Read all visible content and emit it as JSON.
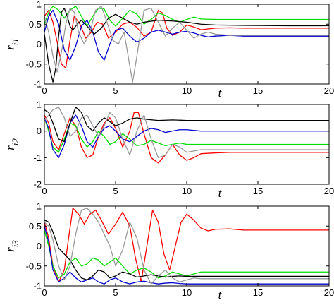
{
  "chart_data": [
    {
      "type": "line",
      "ylabel": "r",
      "ylabel_sub": "i1",
      "xlabel": "t",
      "xlim": [
        0,
        20
      ],
      "ylim": [
        -1,
        1
      ],
      "xticks": [
        "0",
        "5",
        "10",
        "15",
        "20"
      ],
      "yticks": [
        "1",
        "0.5",
        "0",
        "-0.5",
        "-1"
      ],
      "series": [
        {
          "color": "#ff0000",
          "x": [
            0,
            0.3,
            0.6,
            0.9,
            1.2,
            1.5,
            1.8,
            2.1,
            2.5,
            2.9,
            3.3,
            3.7,
            4.1,
            4.5,
            5.0,
            5.5,
            6.0,
            6.5,
            7.0,
            7.5,
            8.0,
            8.3,
            8.6,
            9.0,
            9.5,
            10.0,
            10.5,
            11.0,
            12.0,
            13.0,
            14.0,
            15.0,
            17.0,
            20.0
          ],
          "y": [
            0.7,
            0.85,
            0.55,
            0.05,
            -0.5,
            -0.6,
            0.1,
            0.7,
            0.5,
            0.15,
            0.3,
            0.55,
            0.5,
            0.15,
            0.3,
            0.5,
            0.55,
            0.42,
            0.2,
            0.3,
            0.85,
            0.78,
            0.4,
            0.22,
            0.3,
            0.48,
            0.43,
            0.36,
            0.4,
            0.41,
            0.4,
            0.4,
            0.4,
            0.4
          ]
        },
        {
          "color": "#00dd00",
          "x": [
            0,
            0.3,
            0.6,
            1.0,
            1.4,
            1.8,
            2.2,
            2.6,
            3.0,
            3.4,
            3.8,
            4.2,
            4.6,
            5.0,
            5.5,
            6.0,
            6.5,
            7.0,
            7.5,
            8.0,
            8.5,
            9.0,
            9.5,
            10.0,
            10.5,
            11.0,
            12.0,
            14.0,
            17.0,
            20.0
          ],
          "y": [
            0.5,
            0.8,
            0.95,
            0.85,
            0.65,
            0.85,
            0.95,
            0.7,
            0.45,
            0.7,
            0.9,
            0.88,
            0.6,
            0.45,
            0.65,
            0.85,
            0.75,
            0.5,
            0.62,
            0.78,
            0.72,
            0.62,
            0.55,
            0.62,
            0.68,
            0.63,
            0.62,
            0.62,
            0.62,
            0.62
          ]
        },
        {
          "color": "#0000cc",
          "x": [
            0,
            0.3,
            0.6,
            1.0,
            1.4,
            1.8,
            2.2,
            2.6,
            3.0,
            3.4,
            3.8,
            4.2,
            4.6,
            5.0,
            5.5,
            6.0,
            6.5,
            7.0,
            7.5,
            8.0,
            8.5,
            9.0,
            9.5,
            10.0,
            10.5,
            11.0,
            11.5,
            12.0,
            13.0,
            14.0,
            17.0,
            20.0
          ],
          "y": [
            0.3,
            0.7,
            0.85,
            0.5,
            -0.15,
            -0.4,
            -0.05,
            0.45,
            0.6,
            0.3,
            -0.2,
            -0.4,
            0.0,
            0.35,
            0.4,
            0.2,
            0.05,
            0.15,
            0.3,
            0.35,
            0.3,
            0.25,
            0.3,
            0.32,
            0.28,
            0.22,
            0.18,
            0.2,
            0.22,
            0.2,
            0.2,
            0.2
          ]
        },
        {
          "color": "#000000",
          "x": [
            0,
            0.3,
            0.6,
            0.8,
            1.0,
            1.2,
            1.4,
            1.6,
            1.8,
            2.0,
            2.3,
            2.6,
            3.0,
            3.5,
            4.0,
            4.5,
            5.0,
            5.5,
            6.0,
            6.5,
            7.0,
            8.0,
            9.0,
            10.0,
            11.0,
            12.0,
            14.0,
            17.0,
            20.0
          ],
          "y": [
            0.25,
            -0.5,
            -0.95,
            -0.6,
            0.2,
            0.8,
            0.9,
            0.7,
            0.45,
            0.35,
            0.5,
            0.6,
            0.45,
            0.25,
            0.4,
            0.65,
            0.75,
            0.65,
            0.55,
            0.5,
            0.55,
            0.6,
            0.58,
            0.55,
            0.5,
            0.48,
            0.47,
            0.46,
            0.46
          ]
        },
        {
          "color": "#999999",
          "x": [
            0,
            0.3,
            0.6,
            0.9,
            1.2,
            1.5,
            1.8,
            2.1,
            2.4,
            2.8,
            3.2,
            3.6,
            4.0,
            4.4,
            4.8,
            5.2,
            5.6,
            6.0,
            6.2,
            6.5,
            6.8,
            7.0,
            7.5,
            8.0,
            8.5,
            9.0,
            9.5,
            10.0,
            10.5,
            11.0,
            11.5,
            12.0,
            13.0,
            14.0,
            17.0,
            20.0
          ],
          "y": [
            0.7,
            0.3,
            -0.3,
            -0.7,
            -0.2,
            0.5,
            0.9,
            0.8,
            0.3,
            0.0,
            0.3,
            0.85,
            0.95,
            0.55,
            0.1,
            0.0,
            0.3,
            -0.55,
            -0.95,
            -0.3,
            0.4,
            0.85,
            0.9,
            0.55,
            0.2,
            0.4,
            0.55,
            0.35,
            0.15,
            0.25,
            0.3,
            0.25,
            0.22,
            0.22,
            0.22,
            0.22
          ]
        }
      ]
    },
    {
      "type": "line",
      "ylabel": "r",
      "ylabel_sub": "i2",
      "xlabel": "t",
      "xlim": [
        0,
        20
      ],
      "ylim": [
        -2,
        1
      ],
      "xticks": [
        "0",
        "5",
        "10",
        "15",
        "20"
      ],
      "yticks": [
        "1",
        "0",
        "-1",
        "-2"
      ],
      "series": [
        {
          "color": "#ff0000",
          "x": [
            0,
            0.3,
            0.6,
            1.0,
            1.4,
            1.8,
            2.2,
            2.6,
            3.0,
            3.4,
            3.8,
            4.2,
            4.6,
            5.0,
            5.5,
            6.0,
            6.3,
            6.6,
            7.0,
            7.5,
            8.0,
            8.5,
            9.0,
            9.5,
            10.0,
            10.5,
            11.0,
            12.0,
            13.0,
            15.0,
            17.0,
            20.0
          ],
          "y": [
            0.6,
            0.3,
            -0.4,
            -0.7,
            -0.1,
            0.5,
            0.2,
            -0.6,
            -1.0,
            -0.9,
            -0.2,
            0.3,
            0.5,
            0.1,
            -0.6,
            0.0,
            0.7,
            0.7,
            -0.1,
            -1.0,
            -1.2,
            -0.9,
            -0.5,
            -0.9,
            -1.1,
            -1.0,
            -0.85,
            -0.82,
            -0.8,
            -0.8,
            -0.8,
            -0.8
          ]
        },
        {
          "color": "#00dd00",
          "x": [
            0,
            0.3,
            0.6,
            1.0,
            1.4,
            1.8,
            2.2,
            2.6,
            3.0,
            3.4,
            3.8,
            4.2,
            4.6,
            5.0,
            5.5,
            6.0,
            6.5,
            7.0,
            7.5,
            8.0,
            8.5,
            9.0,
            9.5,
            10.0,
            11.0,
            12.0,
            14.0,
            17.0,
            20.0
          ],
          "y": [
            0.5,
            0.0,
            -0.6,
            -0.8,
            -0.3,
            0.3,
            0.2,
            -0.3,
            -0.6,
            -0.4,
            0.0,
            -0.2,
            -0.5,
            -0.4,
            -0.1,
            -0.3,
            -0.55,
            -0.5,
            -0.35,
            -0.45,
            -0.55,
            -0.5,
            -0.45,
            -0.5,
            -0.5,
            -0.5,
            -0.5,
            -0.5,
            -0.5
          ]
        },
        {
          "color": "#0000cc",
          "x": [
            0,
            0.3,
            0.6,
            1.0,
            1.4,
            1.8,
            2.2,
            2.6,
            3.0,
            3.4,
            3.8,
            4.2,
            4.6,
            5.0,
            5.5,
            6.0,
            6.5,
            7.0,
            7.5,
            8.0,
            8.5,
            9.0,
            9.5,
            10.0,
            11.0,
            12.0,
            14.0,
            17.0,
            20.0
          ],
          "y": [
            0.5,
            0.1,
            -0.7,
            -1.0,
            -0.5,
            0.3,
            0.6,
            0.2,
            -0.4,
            -0.6,
            -0.2,
            0.1,
            0.2,
            0.0,
            -0.3,
            -0.4,
            -0.2,
            0.0,
            0.1,
            0.05,
            -0.05,
            0.0,
            0.05,
            0.05,
            0.0,
            0.0,
            0.0,
            0.0,
            0.0
          ]
        },
        {
          "color": "#000000",
          "x": [
            0,
            0.3,
            0.6,
            1.0,
            1.4,
            1.8,
            2.2,
            2.6,
            3.0,
            3.4,
            3.8,
            4.2,
            4.6,
            5.0,
            5.5,
            6.0,
            6.5,
            7.0,
            8.0,
            9.0,
            10.0,
            12.0,
            14.0,
            17.0,
            20.0
          ],
          "y": [
            0.8,
            0.7,
            0.3,
            -0.3,
            -0.4,
            0.3,
            0.9,
            0.7,
            0.2,
            0.0,
            0.3,
            0.5,
            0.35,
            0.2,
            0.3,
            0.45,
            0.5,
            0.45,
            0.4,
            0.42,
            0.4,
            0.4,
            0.4,
            0.4,
            0.4
          ]
        },
        {
          "color": "#999999",
          "x": [
            0,
            0.3,
            0.6,
            1.0,
            1.4,
            1.8,
            2.2,
            2.6,
            3.0,
            3.4,
            3.8,
            4.2,
            4.6,
            5.0,
            5.5,
            6.0,
            6.5,
            7.0,
            7.5,
            8.0,
            8.5,
            9.0,
            9.5,
            10.0,
            10.5,
            11.0,
            12.0,
            13.0,
            15.0,
            17.0,
            20.0
          ],
          "y": [
            0.4,
            0.6,
            0.8,
            0.9,
            0.5,
            -0.2,
            0.0,
            0.5,
            0.6,
            0.2,
            -0.2,
            0.2,
            0.7,
            0.5,
            -0.3,
            -0.9,
            0.0,
            0.6,
            -0.3,
            -1.0,
            -0.9,
            -0.5,
            -0.6,
            -0.8,
            -0.75,
            -0.7,
            -0.7,
            -0.7,
            -0.7,
            -0.7,
            -0.7
          ]
        }
      ]
    },
    {
      "type": "line",
      "ylabel": "r",
      "ylabel_sub": "i3",
      "xlabel": "t",
      "xlim": [
        0,
        20
      ],
      "ylim": [
        -1,
        1
      ],
      "xticks": [
        "0",
        "5",
        "10",
        "15",
        "20"
      ],
      "yticks": [
        "1",
        "0.5",
        "0",
        "-0.5",
        "-1"
      ],
      "series": [
        {
          "color": "#ff0000",
          "x": [
            0,
            0.3,
            0.6,
            1.0,
            1.4,
            1.7,
            2.0,
            2.4,
            2.8,
            3.2,
            3.6,
            4.0,
            4.5,
            5.0,
            5.5,
            6.0,
            6.4,
            6.8,
            7.2,
            7.6,
            8.0,
            8.4,
            8.8,
            9.2,
            9.6,
            10.0,
            10.5,
            11.0,
            11.5,
            12.0,
            13.0,
            14.0,
            15.0,
            17.0,
            20.0
          ],
          "y": [
            0.6,
            0.2,
            -0.5,
            -0.9,
            -0.6,
            0.2,
            0.95,
            0.8,
            0.55,
            0.8,
            0.9,
            0.65,
            0.3,
            0.55,
            0.85,
            0.5,
            -0.3,
            -0.9,
            0.0,
            0.9,
            0.6,
            -0.2,
            -0.6,
            0.0,
            0.6,
            0.8,
            0.65,
            0.45,
            0.38,
            0.42,
            0.43,
            0.4,
            0.4,
            0.4,
            0.4
          ]
        },
        {
          "color": "#00dd00",
          "x": [
            0,
            0.3,
            0.6,
            1.0,
            1.4,
            1.8,
            2.2,
            2.6,
            3.0,
            3.4,
            3.8,
            4.2,
            4.6,
            5.0,
            5.5,
            6.0,
            6.5,
            7.0,
            7.5,
            8.0,
            8.5,
            9.0,
            9.5,
            10.0,
            10.5,
            11.0,
            12.0,
            13.0,
            15.0,
            17.0,
            20.0
          ],
          "y": [
            0.4,
            0.0,
            -0.5,
            -0.8,
            -0.7,
            -0.4,
            -0.3,
            -0.5,
            -0.45,
            -0.3,
            -0.35,
            -0.5,
            -0.4,
            -0.3,
            -0.5,
            -0.7,
            -0.6,
            -0.55,
            -0.65,
            -0.8,
            -0.75,
            -0.65,
            -0.7,
            -0.75,
            -0.7,
            -0.65,
            -0.65,
            -0.65,
            -0.65,
            -0.65,
            -0.65
          ]
        },
        {
          "color": "#0000cc",
          "x": [
            0,
            0.3,
            0.6,
            1.0,
            1.4,
            1.8,
            2.2,
            2.6,
            3.0,
            3.4,
            3.8,
            4.2,
            4.6,
            5.0,
            5.5,
            6.0,
            6.5,
            7.0,
            7.5,
            8.0,
            8.5,
            9.0,
            9.5,
            10.0,
            11.0,
            12.0,
            14.0,
            17.0,
            20.0
          ],
          "y": [
            0.5,
            0.1,
            -0.6,
            -0.9,
            -0.8,
            -0.65,
            -0.8,
            -0.9,
            -0.85,
            -0.8,
            -0.9,
            -0.95,
            -0.85,
            -0.8,
            -0.9,
            -0.95,
            -0.9,
            -0.88,
            -0.92,
            -0.95,
            -0.93,
            -0.92,
            -0.94,
            -0.95,
            -0.95,
            -0.95,
            -0.95,
            -0.95,
            -0.95
          ]
        },
        {
          "color": "#000000",
          "x": [
            0,
            0.3,
            0.6,
            1.0,
            1.4,
            1.8,
            2.2,
            2.6,
            3.0,
            3.4,
            3.8,
            4.2,
            4.6,
            5.0,
            5.5,
            6.0,
            6.5,
            7.0,
            7.5,
            8.0,
            8.5,
            9.0,
            9.5,
            10.0,
            11.0,
            12.0,
            14.0,
            17.0,
            20.0
          ],
          "y": [
            0.65,
            0.6,
            0.35,
            -0.05,
            -0.2,
            -0.35,
            -0.6,
            -0.8,
            -0.85,
            -0.75,
            -0.6,
            -0.65,
            -0.8,
            -0.75,
            -0.65,
            -0.7,
            -0.78,
            -0.75,
            -0.72,
            -0.75,
            -0.78,
            -0.76,
            -0.75,
            -0.76,
            -0.76,
            -0.76,
            -0.76,
            -0.76,
            -0.76
          ]
        },
        {
          "color": "#999999",
          "x": [
            0,
            0.3,
            0.6,
            1.0,
            1.4,
            1.8,
            2.2,
            2.6,
            3.0,
            3.4,
            3.8,
            4.2,
            4.6,
            5.0,
            5.5,
            6.0,
            6.5,
            7.0,
            7.5,
            8.0,
            8.5,
            9.0,
            9.5,
            10.0,
            10.5,
            11.0,
            12.0,
            13.0,
            15.0,
            17.0,
            20.0
          ],
          "y": [
            0.6,
            0.5,
            0.15,
            -0.5,
            -0.85,
            -0.5,
            0.3,
            0.9,
            0.95,
            0.8,
            0.6,
            0.3,
            0.0,
            -0.5,
            -0.1,
            0.6,
            0.2,
            -0.6,
            -0.95,
            -0.75,
            -0.6,
            -0.8,
            -0.9,
            -0.85,
            -0.8,
            -0.82,
            -0.82,
            -0.82,
            -0.82,
            -0.82,
            -0.82
          ]
        }
      ]
    }
  ]
}
